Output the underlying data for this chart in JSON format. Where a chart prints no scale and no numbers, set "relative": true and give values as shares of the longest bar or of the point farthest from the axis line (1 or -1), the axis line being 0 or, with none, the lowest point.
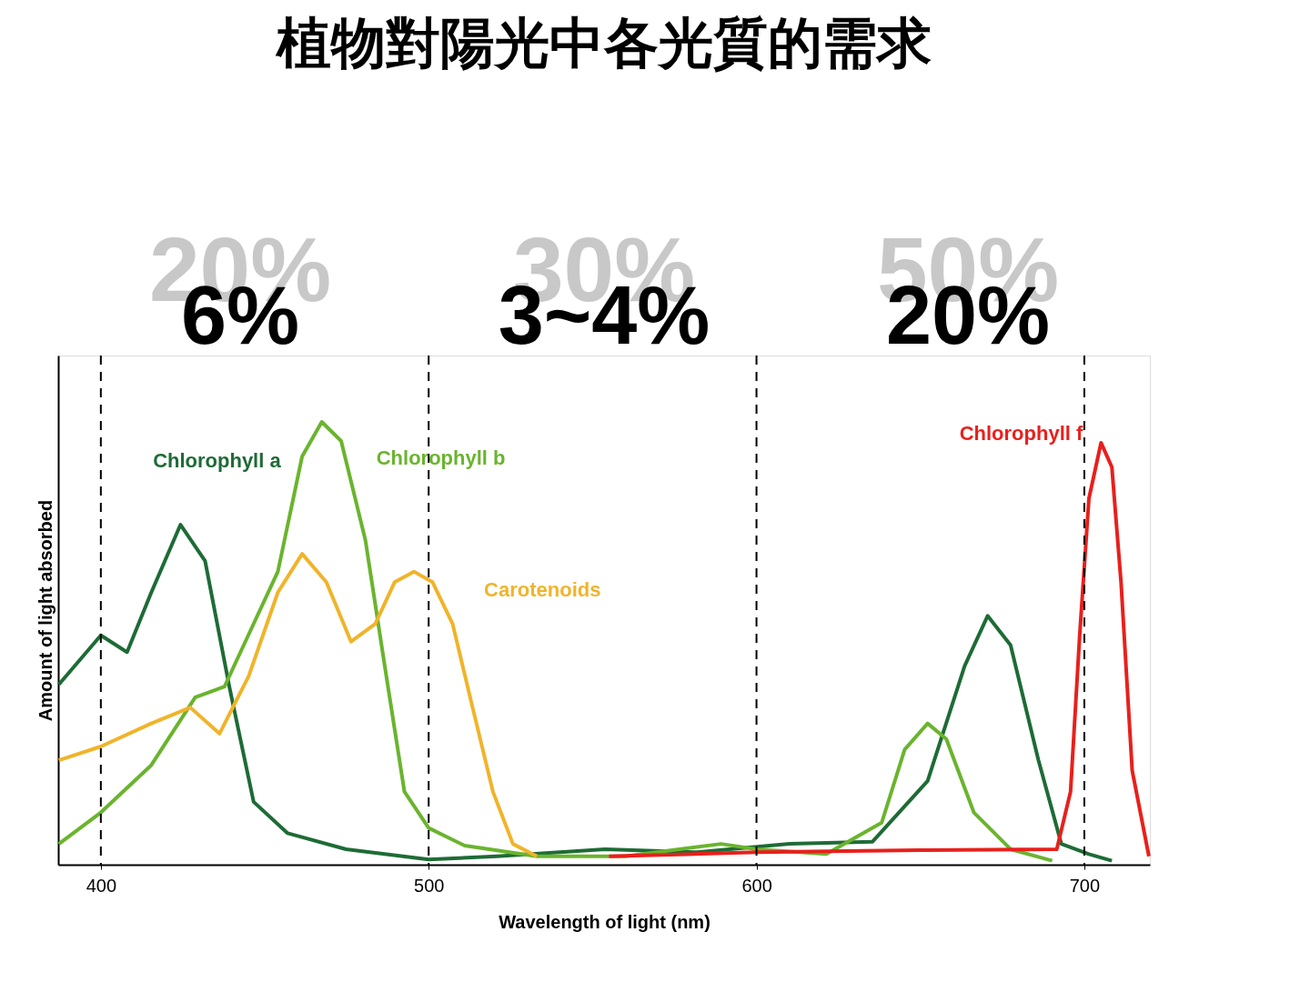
{
  "chart_data": {
    "type": "line",
    "title": "植物對陽光中各光質的需求",
    "xlabel": "Wavelength of light (nm)",
    "ylabel": "Amount of light absorbed",
    "relative": true,
    "xlim": [
      387,
      720
    ],
    "xticks": [
      400,
      500,
      600,
      700
    ],
    "grid": false,
    "marker": "none",
    "line_style": "solid",
    "series": [
      {
        "name": "Chlorophyll a",
        "color": "#1e6b36",
        "x": [
          387.2,
          400,
          408.0,
          415.4,
          424.3,
          431.8,
          439.2,
          446.6,
          457.0,
          474.8,
          500,
          520.8,
          553.8,
          581.9,
          610.1,
          635.4,
          652.2,
          663.5,
          670.5,
          677.5,
          686.0,
          693.0,
          701.4,
          708.4
        ],
        "values": [
          0.407,
          0.518,
          0.48,
          0.615,
          0.768,
          0.686,
          0.402,
          0.142,
          0.071,
          0.035,
          0.012,
          0.019,
          0.035,
          0.028,
          0.047,
          0.052,
          0.189,
          0.449,
          0.562,
          0.496,
          0.236,
          0.047,
          0.024,
          0.009
        ]
      },
      {
        "name": "Chlorophyll b",
        "color": "#6ab42e",
        "x": [
          387.2,
          400,
          415.4,
          428.8,
          437.7,
          445.1,
          454.0,
          461.4,
          467.4,
          473.3,
          480.7,
          486.6,
          492.6,
          500,
          511.0,
          533.0,
          559.9,
          589.2,
          600,
          621.3,
          638.2,
          645.2,
          652.2,
          657.9,
          666.3,
          677.5,
          690.2
        ],
        "values": [
          0.047,
          0.118,
          0.225,
          0.378,
          0.402,
          0.52,
          0.662,
          0.922,
          1,
          0.957,
          0.733,
          0.449,
          0.165,
          0.083,
          0.043,
          0.019,
          0.019,
          0.047,
          0.035,
          0.024,
          0.095,
          0.26,
          0.319,
          0.284,
          0.118,
          0.035,
          0.009
        ]
      },
      {
        "name": "Carotenoids",
        "color": "#f0b42a",
        "x": [
          387.2,
          400,
          415.4,
          427.3,
          436.2,
          445.1,
          454.0,
          461.4,
          468.8,
          476.3,
          483.7,
          489.6,
          495.5,
          501.2,
          507.3,
          513.4,
          519.6,
          525.7,
          533.0
        ],
        "values": [
          0.236,
          0.267,
          0.319,
          0.355,
          0.296,
          0.426,
          0.615,
          0.702,
          0.638,
          0.504,
          0.544,
          0.638,
          0.662,
          0.638,
          0.544,
          0.355,
          0.165,
          0.047,
          0.019
        ]
      },
      {
        "name": "Chlorophyll f",
        "color": "#e8201c",
        "x": [
          555.0,
          600,
          649.4,
          691.6,
          695.8,
          698.6,
          701.4,
          705.1,
          708.4,
          711.2,
          714.6,
          719.7
        ],
        "values": [
          0.019,
          0.028,
          0.033,
          0.035,
          0.165,
          0.52,
          0.827,
          0.953,
          0.898,
          0.638,
          0.213,
          0.019
        ]
      }
    ],
    "ref_lines": [
      {
        "axis": "x",
        "value": 400,
        "line_style": "dashed",
        "color": "#000000"
      },
      {
        "axis": "x",
        "value": 500,
        "line_style": "dashed",
        "color": "#000000"
      },
      {
        "axis": "x",
        "value": 600,
        "line_style": "dashed",
        "color": "#000000"
      },
      {
        "axis": "x",
        "value": 700,
        "line_style": "dashed",
        "color": "#000000"
      }
    ],
    "annotations": [
      "20%",
      "30%",
      "50%",
      "6%",
      "3~4%",
      "20%"
    ]
  }
}
